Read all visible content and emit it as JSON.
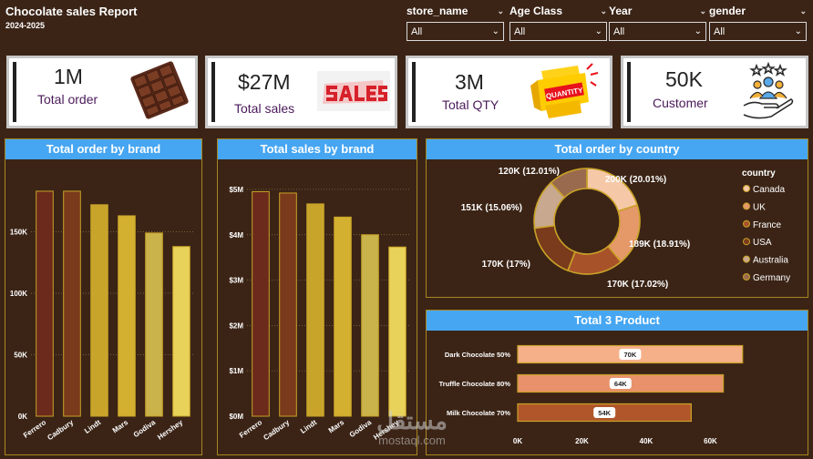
{
  "header": {
    "title": "Chocolate sales Report",
    "subtitle": "2024-2025"
  },
  "slicers": [
    {
      "label": "store_name",
      "value": "All"
    },
    {
      "label": "Age Class",
      "value": "All"
    },
    {
      "label": "Year",
      "value": "All"
    },
    {
      "label": "gender",
      "value": "All"
    }
  ],
  "kpis": [
    {
      "value": "1M",
      "label": "Total order",
      "icon": "chocolate-bar-icon"
    },
    {
      "value": "$27M",
      "label": "Total sales",
      "icon": "sales-banner-icon"
    },
    {
      "value": "3M",
      "label": "Total QTY",
      "icon": "quantity-banner-icon"
    },
    {
      "value": "50K",
      "label": "Customer",
      "icon": "customers-hand-icon"
    }
  ],
  "watermark": {
    "arabic": "مستقل",
    "latin": "mostaql.com"
  },
  "chart_data": [
    {
      "type": "bar",
      "title": "Total order by brand",
      "categories": [
        "Ferrero",
        "Cadbury",
        "Lindt",
        "Mars",
        "Godiva",
        "Hershey"
      ],
      "values": [
        183000,
        183000,
        172000,
        163000,
        149000,
        138000
      ],
      "ylim": [
        0,
        200000
      ],
      "yticks": [
        0,
        50000,
        100000,
        150000
      ],
      "ytick_labels": [
        "0K",
        "50K",
        "100K",
        "150K"
      ],
      "colors": [
        "#6b2a1b",
        "#7a3a1c",
        "#c8a42a",
        "#d4b030",
        "#c9b34a",
        "#e8d25a"
      ]
    },
    {
      "type": "bar",
      "title": "Total sales by brand",
      "categories": [
        "Ferrero",
        "Cadbury",
        "Lindt",
        "Mars",
        "Godiva",
        "Hershey"
      ],
      "values": [
        4950000,
        4920000,
        4680000,
        4390000,
        4000000,
        3730000
      ],
      "ylim": [
        0,
        5200000
      ],
      "yticks": [
        0,
        1000000,
        2000000,
        3000000,
        4000000,
        5000000
      ],
      "ytick_labels": [
        "$0M",
        "$1M",
        "$2M",
        "$3M",
        "$4M",
        "$5M"
      ],
      "colors": [
        "#6b2a1b",
        "#7a3a1c",
        "#c8a42a",
        "#d4b030",
        "#c9b34a",
        "#e8d25a"
      ]
    },
    {
      "type": "pie",
      "title": "Total order by country",
      "legend_title": "country",
      "legend_position": "right",
      "labels": [
        "Canada",
        "UK",
        "France",
        "USA",
        "Australia",
        "Germany"
      ],
      "values": [
        200000,
        189000,
        170000,
        170000,
        151000,
        120000
      ],
      "data_labels": [
        "200K (20.01%)",
        "189K (18.91%)",
        "170K (17.02%)",
        "170K (17%)",
        "151K (15.06%)",
        "120K (12.01%)"
      ],
      "colors": [
        "#f5c9a8",
        "#e59868",
        "#a8522a",
        "#7a3a1c",
        "#c8a88e",
        "#9a6a4e"
      ]
    },
    {
      "type": "bar",
      "orientation": "horizontal",
      "title": "Total 3 Product",
      "categories": [
        "Dark Chocolate 50%",
        "Truffle Chocolate 80%",
        "Milk Chocolate 70%"
      ],
      "values": [
        70000,
        64000,
        54000
      ],
      "data_labels": [
        "70K",
        "64K",
        "54K"
      ],
      "xlim": [
        0,
        80000
      ],
      "xticks": [
        0,
        20000,
        40000,
        60000
      ],
      "xtick_labels": [
        "0K",
        "20K",
        "40K",
        "60K"
      ],
      "colors": [
        "#f5b089",
        "#e8916a",
        "#b0562a"
      ]
    }
  ]
}
